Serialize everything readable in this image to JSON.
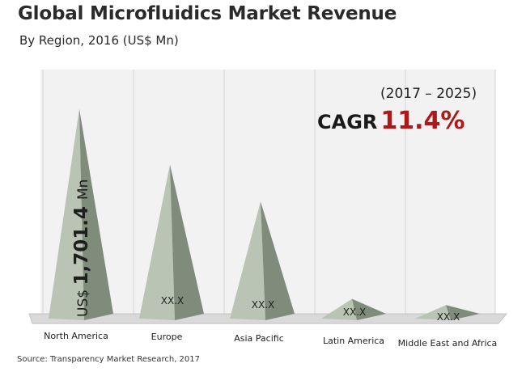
{
  "title": "Global Microfluidics Market Revenue",
  "subtitle": "By Region, 2016 (US$ Mn)",
  "source": "Source: Transparency Market Research, 2017",
  "cagr": {
    "period": "(2017 – 2025)",
    "label": "CAGR",
    "value": "11.4%"
  },
  "colors": {
    "pyramid_front": "#b9c4b4",
    "pyramid_side": "#7f8c7b",
    "background_panel": "#f2f2f2",
    "cagr_value": "#b01818"
  },
  "chart_data": {
    "type": "bar",
    "shape": "pyramid",
    "title": "Global Microfluidics Market Revenue",
    "subtitle": "By Region, 2016 (US$ Mn)",
    "categories": [
      "North America",
      "Europe",
      "Asia Pacific",
      "Latin America",
      "Middle East and Africa"
    ],
    "values": [
      1701.4,
      1250,
      950,
      160,
      110
    ],
    "value_labels": [
      "US$ 1,701.4 Mn",
      "XX.X",
      "XX.X",
      "XX.X",
      "XX.X"
    ],
    "ylim": [
      0,
      1850
    ],
    "grid": true,
    "legend": "none"
  }
}
